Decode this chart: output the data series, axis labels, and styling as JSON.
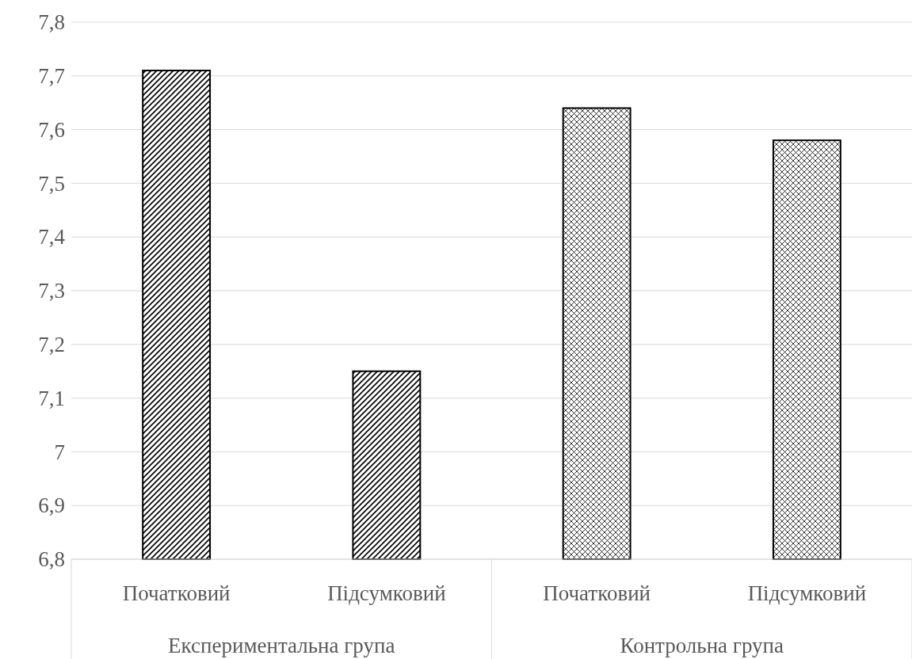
{
  "chart_data": {
    "type": "bar",
    "categories": [
      "Початковий",
      "Підсумковий",
      "Початковий",
      "Підсумковий"
    ],
    "values": [
      7.71,
      7.15,
      7.64,
      7.58
    ],
    "color": "#000000",
    "annotations": [
      "Експериментальна група",
      "Контрольна група"
    ],
    "ylim": [
      6.8,
      7.8
    ],
    "yticks": [
      {
        "value": 6.8,
        "label": "6,8"
      },
      {
        "value": 6.9,
        "label": "6,9"
      },
      7,
      {
        "value": 7.1,
        "label": "7,1"
      },
      {
        "value": 7.2,
        "label": "7,2"
      },
      {
        "value": 7.3,
        "label": "7,3"
      },
      {
        "value": 7.4,
        "label": "7,4"
      },
      {
        "value": 7.5,
        "label": "7,5"
      },
      {
        "value": 7.6,
        "label": "7,6"
      },
      {
        "value": 7.7,
        "label": "7,7"
      },
      {
        "value": 7.8,
        "label": "7,8"
      }
    ],
    "grid": "y"
  }
}
